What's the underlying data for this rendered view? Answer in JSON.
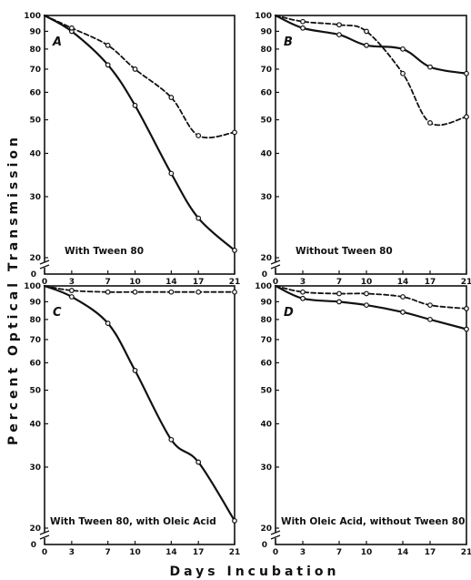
{
  "figure": {
    "ylabel": "Percent Optical Transmission",
    "xlabel": "Days Incubation"
  },
  "chart_data": [
    {
      "type": "line",
      "panel": "A",
      "annotation": "With Tween 80",
      "x_ticks": [
        0,
        3,
        7,
        10,
        14,
        17,
        21
      ],
      "y_ticks": [
        20,
        30,
        40,
        50,
        60,
        70,
        80,
        90,
        100
      ],
      "y_tick_labels": [
        "20",
        "30",
        "40",
        "50",
        "60",
        "70",
        "80",
        "90",
        "100"
      ],
      "y_scale": "log",
      "xlim": [
        0,
        21
      ],
      "ylim": [
        20,
        100
      ],
      "series": [
        {
          "style": "solid",
          "x": [
            0,
            3,
            7,
            10,
            14,
            17,
            21
          ],
          "points": [
            100,
            90,
            72,
            55,
            35,
            26,
            21
          ]
        },
        {
          "style": "dashed",
          "x": [
            0,
            3,
            7,
            10,
            14,
            17,
            21
          ],
          "points": [
            100,
            92,
            82,
            70,
            58,
            45,
            46
          ]
        }
      ]
    },
    {
      "type": "line",
      "panel": "B",
      "annotation": "Without Tween 80",
      "x_ticks": [
        0,
        3,
        7,
        10,
        14,
        17,
        21
      ],
      "y_ticks": [
        20,
        30,
        40,
        50,
        60,
        70,
        80,
        90,
        100
      ],
      "y_tick_labels": [
        "20",
        "30",
        "40",
        "50",
        "60",
        "70",
        "80",
        "90",
        "100"
      ],
      "y_scale": "log",
      "xlim": [
        0,
        21
      ],
      "ylim": [
        20,
        100
      ],
      "series": [
        {
          "style": "solid",
          "x": [
            0,
            3,
            7,
            10,
            14,
            17,
            21
          ],
          "points": [
            100,
            92,
            88,
            82,
            80,
            71,
            68
          ]
        },
        {
          "style": "dashed",
          "x": [
            0,
            3,
            7,
            10,
            14,
            17,
            21
          ],
          "points": [
            100,
            96,
            94,
            90,
            68,
            49,
            51
          ]
        }
      ]
    },
    {
      "type": "line",
      "panel": "C",
      "annotation": "With Tween 80, with Oleic Acid",
      "x_ticks": [
        0,
        3,
        7,
        10,
        14,
        17,
        21
      ],
      "y_ticks": [
        20,
        30,
        40,
        50,
        60,
        70,
        80,
        90,
        100
      ],
      "y_tick_labels": [
        "20",
        "30",
        "40",
        "50",
        "60",
        "70",
        "80",
        "90",
        "100"
      ],
      "y_scale": "log",
      "xlim": [
        0,
        21
      ],
      "ylim": [
        20,
        100
      ],
      "series": [
        {
          "style": "solid",
          "x": [
            0,
            3,
            7,
            10,
            14,
            17,
            21
          ],
          "points": [
            100,
            93,
            78,
            57,
            36,
            31,
            21
          ]
        },
        {
          "style": "dashed",
          "x": [
            0,
            3,
            7,
            10,
            14,
            17,
            21
          ],
          "points": [
            100,
            97,
            96,
            96,
            96,
            96,
            96
          ]
        }
      ]
    },
    {
      "type": "line",
      "panel": "D",
      "annotation": "With Oleic Acid, without Tween 80",
      "x_ticks": [
        0,
        3,
        7,
        10,
        14,
        17,
        21
      ],
      "y_ticks": [
        20,
        30,
        40,
        50,
        60,
        70,
        80,
        90,
        100
      ],
      "y_tick_labels": [
        "20",
        "30",
        "40",
        "50",
        "60",
        "70",
        "80",
        "90",
        "100"
      ],
      "y_scale": "log",
      "xlim": [
        0,
        21
      ],
      "ylim": [
        20,
        100
      ],
      "series": [
        {
          "style": "solid",
          "x": [
            0,
            3,
            7,
            10,
            14,
            17,
            21
          ],
          "points": [
            100,
            92,
            90,
            88,
            84,
            80,
            75
          ]
        },
        {
          "style": "dashed",
          "x": [
            0,
            3,
            7,
            10,
            14,
            17,
            21
          ],
          "points": [
            100,
            96,
            95,
            95,
            93,
            88,
            86
          ]
        }
      ]
    }
  ]
}
